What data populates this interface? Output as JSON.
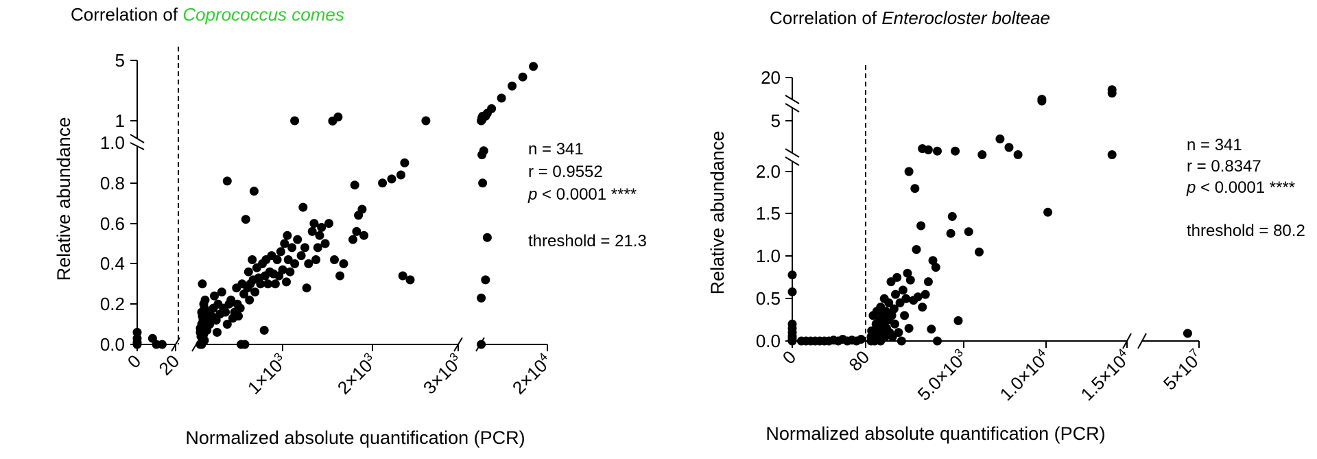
{
  "colors": {
    "species_left": "#33cc33",
    "text": "#000000",
    "points": "#000000"
  },
  "chart_data": [
    {
      "type": "scatter",
      "title_prefix": "Correlation of ",
      "title_species": "Coprococcus comes",
      "ylabel": "Relative abundance",
      "xlabel": "Normalized absolute quantification (PCR)",
      "y_axis": {
        "segments": [
          {
            "range": [
              0,
              1.0
            ],
            "ticks": [
              "0.0",
              "0.2",
              "0.4",
              "0.6",
              "0.8",
              "1.0"
            ]
          },
          {
            "range": [
              1,
              5
            ],
            "ticks": [
              "1",
              "5"
            ]
          }
        ]
      },
      "x_axis": {
        "segments": [
          {
            "range": [
              0,
              20
            ],
            "ticks": [
              "0",
              "20"
            ]
          },
          {
            "range": [
              20,
              3000
            ],
            "ticks": [
              "1×10^3",
              "2×10^3",
              "3×10^3"
            ]
          },
          {
            "range": [
              3000,
              20000
            ],
            "ticks": [
              "2×10^4"
            ]
          }
        ],
        "tick_labels": [
          {
            "base": "0",
            "exp": ""
          },
          {
            "base": "20",
            "exp": ""
          },
          {
            "base": "1×10",
            "exp": "3"
          },
          {
            "base": "2×10",
            "exp": "3"
          },
          {
            "base": "3×10",
            "exp": "3"
          },
          {
            "base": "2×10",
            "exp": "4"
          }
        ]
      },
      "threshold": 21.3,
      "stats": {
        "n": "n = 341",
        "r": "r = 0.9552",
        "p_symbol": "p",
        "p_rest": " < 0.0001 ****",
        "threshold": "threshold = 21.3"
      },
      "points": {
        "below_threshold": [
          [
            0,
            0.0
          ],
          [
            0,
            0.01
          ],
          [
            0,
            0.03
          ],
          [
            0,
            0.06
          ],
          [
            8,
            0.03
          ],
          [
            10,
            0.0
          ],
          [
            13,
            0.0
          ]
        ],
        "linear": [
          [
            35,
            0.0
          ],
          [
            40,
            0.02
          ],
          [
            50,
            0.04
          ],
          [
            60,
            0.1
          ],
          [
            70,
            0.06
          ],
          [
            80,
            0.14
          ],
          [
            90,
            0.02
          ],
          [
            100,
            0.0
          ],
          [
            100,
            0.16
          ],
          [
            110,
            0.05
          ],
          [
            115,
            0.3
          ],
          [
            130,
            0.12
          ],
          [
            140,
            0.08
          ],
          [
            150,
            0.04
          ],
          [
            160,
            0.18
          ],
          [
            170,
            0.1
          ],
          [
            180,
            0.2
          ],
          [
            190,
            0.06
          ],
          [
            200,
            0.13
          ],
          [
            210,
            0.08
          ],
          [
            230,
            0.16
          ],
          [
            240,
            0.12
          ],
          [
            250,
            0.1
          ],
          [
            260,
            0.22
          ],
          [
            270,
            0.12
          ],
          [
            280,
            0.07
          ],
          [
            300,
            0.16
          ],
          [
            310,
            0.1
          ],
          [
            330,
            0.14
          ],
          [
            350,
            0.18
          ],
          [
            360,
            0.24
          ],
          [
            380,
            0.12
          ],
          [
            390,
            0.06
          ],
          [
            400,
            0.2
          ],
          [
            420,
            0.15
          ],
          [
            440,
            0.26
          ],
          [
            460,
            0.18
          ],
          [
            480,
            0.16
          ],
          [
            500,
            0.81
          ],
          [
            500,
            0.1
          ],
          [
            520,
            0.2
          ],
          [
            540,
            0.22
          ],
          [
            560,
            0.13
          ],
          [
            580,
            0.16
          ],
          [
            600,
            0.28
          ],
          [
            610,
            0.2
          ],
          [
            620,
            0.14
          ],
          [
            640,
            0.18
          ],
          [
            650,
            0.0
          ],
          [
            660,
            0.3
          ],
          [
            680,
            0.25
          ],
          [
            690,
            0.0
          ],
          [
            700,
            0.62
          ],
          [
            720,
            0.28
          ],
          [
            730,
            0.36
          ],
          [
            740,
            0.22
          ],
          [
            750,
            0.3
          ],
          [
            770,
            0.42
          ],
          [
            780,
            0.32
          ],
          [
            790,
            0.76
          ],
          [
            800,
            0.26
          ],
          [
            820,
            0.38
          ],
          [
            840,
            0.33
          ],
          [
            860,
            0.3
          ],
          [
            880,
            0.4
          ],
          [
            900,
            0.07
          ],
          [
            910,
            0.34
          ],
          [
            920,
            0.42
          ],
          [
            940,
            0.3
          ],
          [
            960,
            0.36
          ],
          [
            980,
            0.44
          ],
          [
            1000,
            0.35
          ],
          [
            1020,
            0.3
          ],
          [
            1040,
            0.42
          ],
          [
            1060,
            0.34
          ],
          [
            1080,
            0.46
          ],
          [
            1100,
            0.37
          ],
          [
            1120,
            0.5
          ],
          [
            1140,
            0.31
          ],
          [
            1150,
            0.54
          ],
          [
            1160,
            0.42
          ],
          [
            1180,
            0.36
          ],
          [
            1200,
            0.48
          ],
          [
            1230,
            0.4
          ],
          [
            1260,
            0.52
          ],
          [
            1300,
            0.44
          ],
          [
            1320,
            0.68
          ],
          [
            1340,
            0.48
          ],
          [
            1360,
            0.28
          ],
          [
            1380,
            0.4
          ],
          [
            1420,
            0.56
          ],
          [
            1440,
            0.6
          ],
          [
            1460,
            0.42
          ],
          [
            1480,
            0.48
          ],
          [
            1500,
            0.54
          ],
          [
            1520,
            0.58
          ],
          [
            1560,
            0.5
          ],
          [
            1600,
            0.6
          ],
          [
            1660,
            0.42
          ],
          [
            1720,
            0.34
          ],
          [
            1760,
            0.4
          ],
          [
            1860,
            0.52
          ],
          [
            1880,
            0.79
          ],
          [
            1900,
            0.56
          ],
          [
            1920,
            0.64
          ],
          [
            1960,
            0.67
          ],
          [
            1980,
            0.54
          ],
          [
            2180,
            0.8
          ],
          [
            2280,
            0.82
          ],
          [
            2380,
            0.84
          ],
          [
            2420,
            0.9
          ],
          [
            2400,
            0.34
          ],
          [
            2480,
            0.32
          ]
        ],
        "linear_break": [
          [
            1230,
            1.0
          ],
          [
            1640,
            0.98
          ],
          [
            1700,
            1.25
          ]
        ],
        "upper": [
          [
            2650,
            1.0
          ],
          [
            3500,
            1.06
          ],
          [
            4500,
            1.3
          ],
          [
            5000,
            1.5
          ],
          [
            6200,
            1.8
          ],
          [
            9000,
            2.5
          ],
          [
            12000,
            3.3
          ],
          [
            15000,
            3.9
          ],
          [
            18000,
            4.6
          ]
        ],
        "high_x": [
          [
            3300,
            0.0
          ],
          [
            3300,
            0.23
          ],
          [
            3700,
            0.8
          ],
          [
            3500,
            0.94
          ],
          [
            4000,
            0.96
          ],
          [
            4500,
            0.32
          ],
          [
            5000,
            0.53
          ]
        ],
        "high_x_break": [
          [
            3300,
            1.0
          ],
          [
            3500,
            1.2
          ],
          [
            3700,
            1.3
          ]
        ]
      }
    },
    {
      "type": "scatter",
      "title_prefix": "Correlation of ",
      "title_species": "Enterocloster bolteae",
      "ylabel": "Relative abundance",
      "xlabel": "Normalized absolute quantification (PCR)",
      "y_axis": {
        "segments": [
          {
            "range": [
              0,
              2.0
            ],
            "ticks": [
              "0.0",
              "0.5",
              "1.0",
              "1.5",
              "2.0"
            ]
          },
          {
            "range": [
              2,
              5
            ],
            "ticks": [
              "5"
            ]
          },
          {
            "range": [
              5,
              20
            ],
            "ticks": [
              "20"
            ]
          }
        ]
      },
      "x_axis": {
        "segments": [
          {
            "range": [
              0,
              80
            ],
            "ticks": [
              "0",
              "80"
            ]
          },
          {
            "range": [
              80,
              17500
            ],
            "ticks": [
              "5.0×10^3",
              "1.0×10^4",
              "1.5×10^4"
            ]
          },
          {
            "range": [
              17500,
              50000000
            ],
            "ticks": [
              "5×10^7"
            ]
          }
        ],
        "tick_labels": [
          {
            "base": "0",
            "exp": ""
          },
          {
            "base": "80",
            "exp": ""
          },
          {
            "base": "5.0×10",
            "exp": "3"
          },
          {
            "base": "1.0×10",
            "exp": "4"
          },
          {
            "base": "1.5×10",
            "exp": "4"
          },
          {
            "base": "5×10",
            "exp": "7"
          }
        ]
      },
      "threshold": 80.2,
      "stats": {
        "n": "n = 341",
        "r": "r = 0.8347",
        "p_symbol": "p",
        "p_rest": " < 0.0001 ****",
        "threshold": "threshold = 80.2"
      },
      "points": {
        "below_threshold": [
          [
            0,
            0.0
          ],
          [
            0,
            0.02
          ],
          [
            0,
            0.04
          ],
          [
            0,
            0.06
          ],
          [
            0,
            0.1
          ],
          [
            0,
            0.15
          ],
          [
            0,
            0.2
          ],
          [
            0,
            0.58
          ],
          [
            0,
            0.78
          ],
          [
            10,
            0.0
          ],
          [
            15,
            0.0
          ],
          [
            20,
            0.0
          ],
          [
            25,
            0.0
          ],
          [
            30,
            0.0
          ],
          [
            35,
            0.0
          ],
          [
            40,
            0.0
          ],
          [
            45,
            0.01
          ],
          [
            50,
            0.0
          ],
          [
            55,
            0.02
          ],
          [
            60,
            0.0
          ],
          [
            65,
            0.01
          ],
          [
            70,
            0.0
          ],
          [
            75,
            0.02
          ]
        ],
        "linear": [
          [
            200,
            0.0
          ],
          [
            300,
            0.05
          ],
          [
            400,
            0.12
          ],
          [
            500,
            0.3
          ],
          [
            550,
            0.1
          ],
          [
            600,
            0.0
          ],
          [
            700,
            0.2
          ],
          [
            750,
            0.35
          ],
          [
            800,
            0.05
          ],
          [
            900,
            0.15
          ],
          [
            950,
            0.25
          ],
          [
            1000,
            0.0
          ],
          [
            1000,
            0.4
          ],
          [
            1100,
            0.1
          ],
          [
            1150,
            0.3
          ],
          [
            1200,
            0.2
          ],
          [
            1250,
            0.5
          ],
          [
            1300,
            0.05
          ],
          [
            1350,
            0.35
          ],
          [
            1400,
            0.15
          ],
          [
            1500,
            0.25
          ],
          [
            1550,
            0.45
          ],
          [
            1600,
            0.1
          ],
          [
            1700,
            0.7
          ],
          [
            1750,
            0.3
          ],
          [
            1800,
            0.05
          ],
          [
            1900,
            0.38
          ],
          [
            1950,
            0.2
          ],
          [
            2000,
            0.55
          ],
          [
            2100,
            0.75
          ],
          [
            2200,
            0.1
          ],
          [
            2300,
            0.45
          ],
          [
            2400,
            0.0
          ],
          [
            2500,
            0.6
          ],
          [
            2600,
            0.3
          ],
          [
            2700,
            0.5
          ],
          [
            2800,
            0.8
          ],
          [
            2900,
            0.15
          ],
          [
            3000,
            0.72
          ],
          [
            3200,
            0.48
          ],
          [
            3400,
            1.08
          ],
          [
            3500,
            0.52
          ],
          [
            3700,
            1.36
          ],
          [
            3800,
            0.4
          ],
          [
            4000,
            0.55
          ],
          [
            4200,
            0.7
          ],
          [
            4400,
            0.14
          ],
          [
            4500,
            0.95
          ],
          [
            4700,
            0.87
          ],
          [
            4800,
            0.0
          ],
          [
            5700,
            1.27
          ],
          [
            5800,
            1.47
          ],
          [
            6200,
            0.24
          ],
          [
            6900,
            1.29
          ],
          [
            7600,
            1.05
          ],
          [
            12200,
            1.52
          ]
        ],
        "linear_break": [
          [
            2900,
            2.0
          ],
          [
            3300,
            1.8
          ]
        ],
        "upper": [
          [
            3800,
            2.7
          ],
          [
            4200,
            2.6
          ],
          [
            4800,
            2.5
          ],
          [
            6000,
            2.5
          ],
          [
            7800,
            2.2
          ],
          [
            9000,
            3.5
          ],
          [
            9600,
            2.8
          ],
          [
            10200,
            2.2
          ],
          [
            11800,
            6.5
          ],
          [
            11800,
            7.5
          ],
          [
            16500,
            11.0
          ],
          [
            16500,
            13.0
          ],
          [
            16500,
            2.2
          ]
        ],
        "high_x": [
          [
            40000000,
            0.09
          ]
        ]
      }
    }
  ]
}
